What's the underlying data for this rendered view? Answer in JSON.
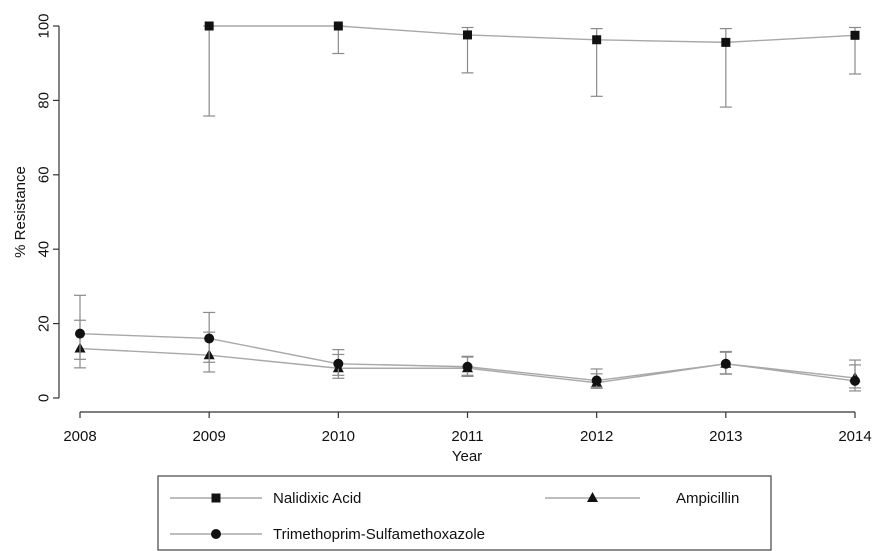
{
  "chart_data": {
    "type": "line",
    "title": "",
    "xlabel": "Year",
    "ylabel": "% Resistance",
    "x": [
      2008,
      2009,
      2010,
      2011,
      2012,
      2013,
      2014
    ],
    "xlim": [
      2008,
      2014
    ],
    "ylim": [
      0,
      100
    ],
    "yticks": [
      0,
      20,
      40,
      60,
      80,
      100
    ],
    "grid": false,
    "legend_position": "bottom",
    "series": [
      {
        "name": "Nalidixic Acid",
        "marker": "square",
        "x": [
          2009,
          2010,
          2011,
          2012,
          2013,
          2014
        ],
        "values": [
          100,
          100,
          97.6,
          96.3,
          95.6,
          97.5
        ],
        "lower": [
          75.8,
          92.6,
          87.4,
          81.1,
          78.2,
          87.1
        ],
        "upper": [
          100,
          100,
          99.6,
          99.3,
          99.3,
          99.6
        ]
      },
      {
        "name": "Ampicillin",
        "marker": "triangle",
        "x": [
          2008,
          2009,
          2010,
          2011,
          2012,
          2013,
          2014
        ],
        "values": [
          13.3,
          11.5,
          8.0,
          8.0,
          4.1,
          9.2,
          5.4
        ],
        "lower": [
          8.1,
          7.0,
          5.3,
          5.8,
          2.6,
          6.5,
          2.7
        ],
        "upper": [
          20.9,
          17.7,
          11.7,
          11.0,
          6.5,
          12.5,
          10.2
        ]
      },
      {
        "name": "Trimethoprim-Sulfamethoxazole",
        "marker": "circle",
        "x": [
          2008,
          2009,
          2010,
          2011,
          2012,
          2013,
          2014
        ],
        "values": [
          17.3,
          16.0,
          9.2,
          8.4,
          4.7,
          9.2,
          4.6
        ],
        "lower": [
          10.4,
          9.6,
          6.1,
          6.1,
          2.9,
          6.4,
          1.9
        ],
        "upper": [
          27.6,
          23.0,
          13.0,
          11.2,
          7.8,
          12.3,
          8.9
        ]
      }
    ]
  }
}
